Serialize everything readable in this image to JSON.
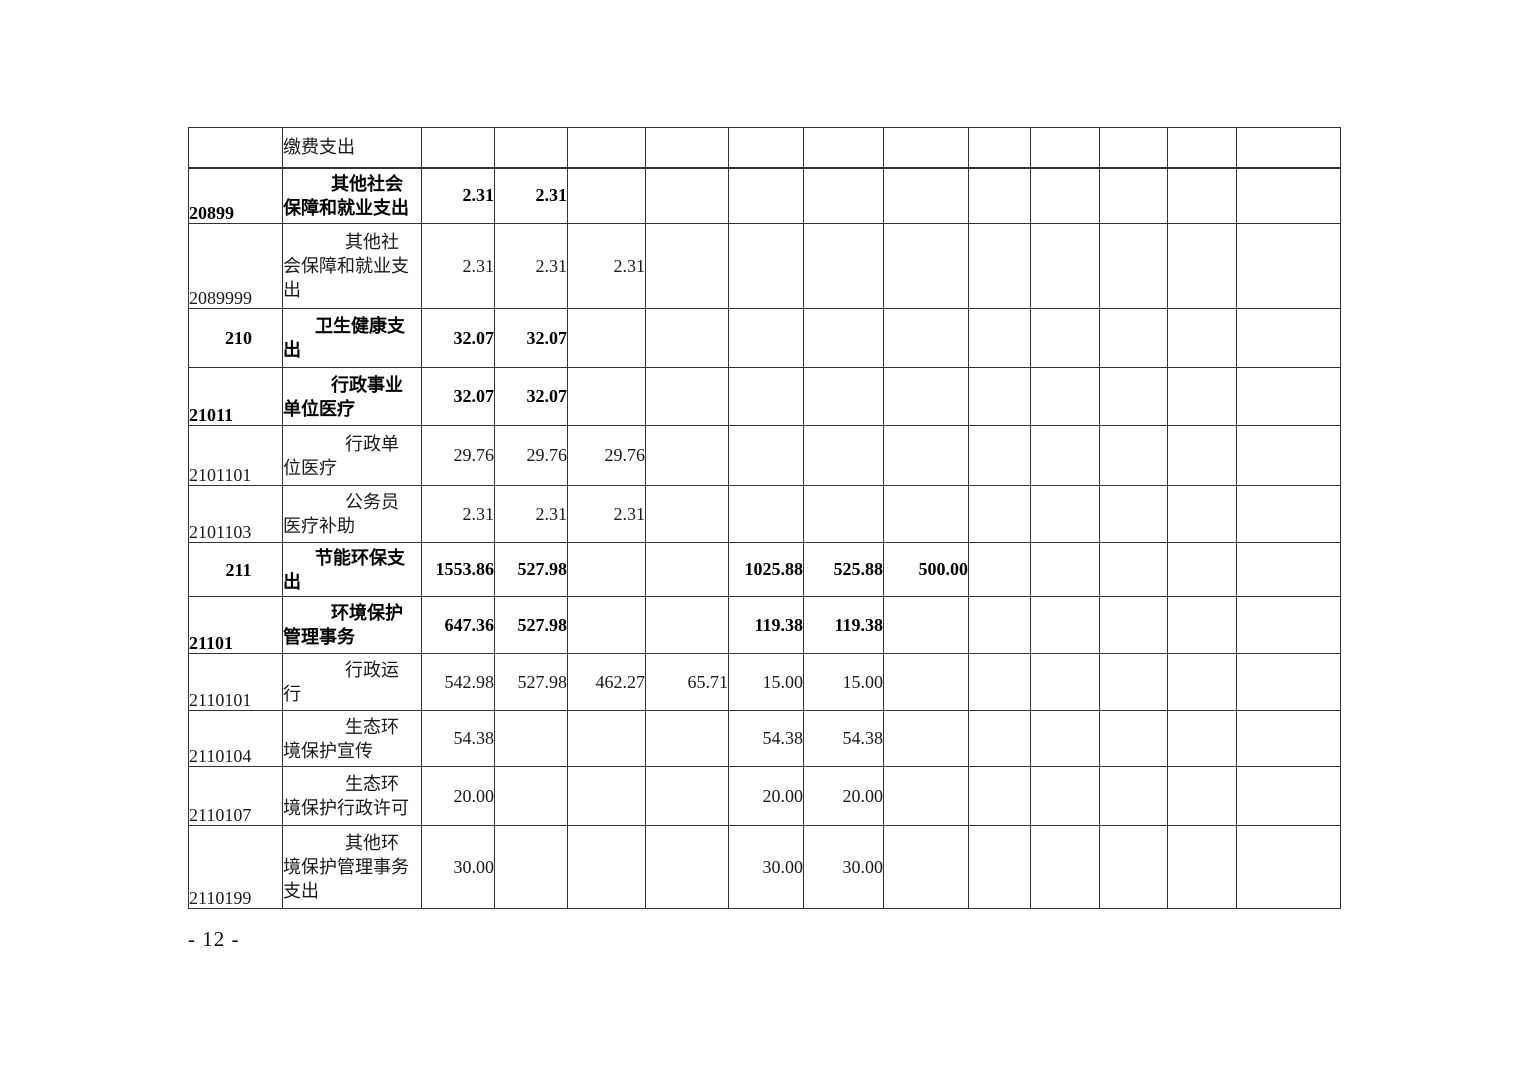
{
  "page": {
    "number_label": "- 12 -"
  },
  "table": {
    "description": "budget expenditure table continuation page",
    "rows": [
      {
        "code": "",
        "level": "cont",
        "name": "缴费支出",
        "name_lines": [
          "缴费支出"
        ],
        "values": [
          "",
          "",
          "",
          "",
          "",
          "",
          "",
          "",
          "",
          "",
          "",
          ""
        ]
      },
      {
        "code": "20899",
        "level": "section",
        "name": "其他社会保障和就业支出",
        "name_lines": [
          "其他社会",
          "保障和就业支出"
        ],
        "values": [
          "2.31",
          "2.31",
          "",
          "",
          "",
          "",
          "",
          "",
          "",
          "",
          "",
          ""
        ]
      },
      {
        "code": "2089999",
        "level": "item",
        "name": "其他社会保障和就业支出",
        "name_lines": [
          "其他社",
          "会保障和就业支",
          "出"
        ],
        "values": [
          "2.31",
          "2.31",
          "2.31",
          "",
          "",
          "",
          "",
          "",
          "",
          "",
          "",
          ""
        ]
      },
      {
        "code": "210",
        "level": "class",
        "name": "卫生健康支出",
        "name_lines": [
          "卫生健康支",
          "出"
        ],
        "values": [
          "32.07",
          "32.07",
          "",
          "",
          "",
          "",
          "",
          "",
          "",
          "",
          "",
          ""
        ]
      },
      {
        "code": "21011",
        "level": "section",
        "name": "行政事业单位医疗",
        "name_lines": [
          "行政事业",
          "单位医疗"
        ],
        "values": [
          "32.07",
          "32.07",
          "",
          "",
          "",
          "",
          "",
          "",
          "",
          "",
          "",
          ""
        ]
      },
      {
        "code": "2101101",
        "level": "item",
        "name": "行政单位医疗",
        "name_lines": [
          "行政单",
          "位医疗"
        ],
        "values": [
          "29.76",
          "29.76",
          "29.76",
          "",
          "",
          "",
          "",
          "",
          "",
          "",
          "",
          ""
        ]
      },
      {
        "code": "2101103",
        "level": "item",
        "name": "公务员医疗补助",
        "name_lines": [
          "公务员",
          "医疗补助"
        ],
        "values": [
          "2.31",
          "2.31",
          "2.31",
          "",
          "",
          "",
          "",
          "",
          "",
          "",
          "",
          ""
        ]
      },
      {
        "code": "211",
        "level": "class",
        "name": "节能环保支出",
        "name_lines": [
          "节能环保支",
          "出"
        ],
        "values": [
          "1553.86",
          "527.98",
          "",
          "",
          "1025.88",
          "525.88",
          "500.00",
          "",
          "",
          "",
          "",
          ""
        ]
      },
      {
        "code": "21101",
        "level": "section",
        "name": "环境保护管理事务",
        "name_lines": [
          "环境保护",
          "管理事务"
        ],
        "values": [
          "647.36",
          "527.98",
          "",
          "",
          "119.38",
          "119.38",
          "",
          "",
          "",
          "",
          "",
          ""
        ]
      },
      {
        "code": "2110101",
        "level": "item",
        "name": "行政运行",
        "name_lines": [
          "行政运",
          "行"
        ],
        "values": [
          "542.98",
          "527.98",
          "462.27",
          "65.71",
          "15.00",
          "15.00",
          "",
          "",
          "",
          "",
          "",
          ""
        ]
      },
      {
        "code": "2110104",
        "level": "item",
        "name": "生态环境保护宣传",
        "name_lines": [
          "生态环",
          "境保护宣传"
        ],
        "values": [
          "54.38",
          "",
          "",
          "",
          "54.38",
          "54.38",
          "",
          "",
          "",
          "",
          "",
          ""
        ]
      },
      {
        "code": "2110107",
        "level": "item",
        "name": "生态环境保护行政许可",
        "name_lines": [
          "生态环",
          "境保护行政许可"
        ],
        "values": [
          "20.00",
          "",
          "",
          "",
          "20.00",
          "20.00",
          "",
          "",
          "",
          "",
          "",
          ""
        ]
      },
      {
        "code": "2110199",
        "level": "item",
        "name": "其他环境保护管理事务支出",
        "name_lines": [
          "其他环",
          "境保护管理事务",
          "支出"
        ],
        "values": [
          "30.00",
          "",
          "",
          "",
          "30.00",
          "30.00",
          "",
          "",
          "",
          "",
          "",
          ""
        ]
      }
    ]
  }
}
